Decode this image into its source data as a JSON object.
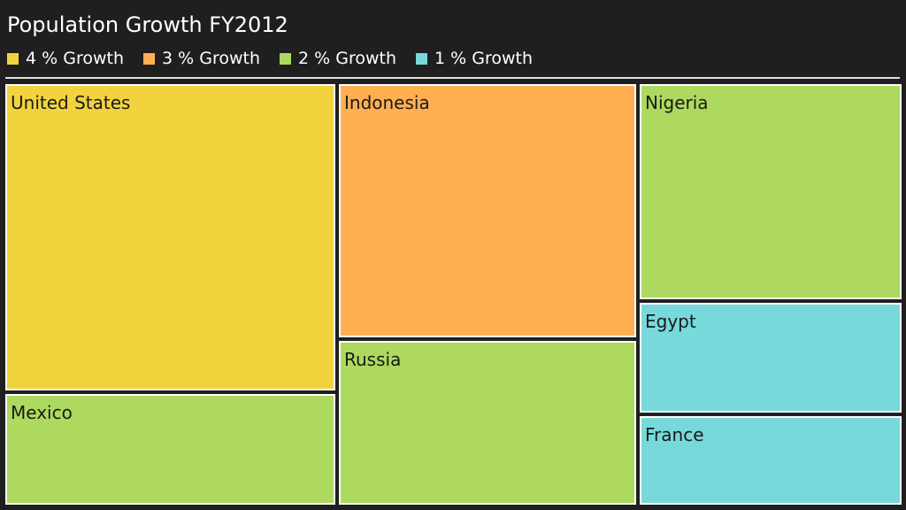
{
  "chart_data": {
    "type": "treemap",
    "title": "Population Growth FY2012",
    "legend": {
      "position": "top-left",
      "entries": [
        {
          "label": "4 % Growth",
          "growth": 4,
          "color": "#f2d33e"
        },
        {
          "label": "3 % Growth",
          "growth": 3,
          "color": "#ffaf52"
        },
        {
          "label": "2 % Growth",
          "growth": 2,
          "color": "#aed95f"
        },
        {
          "label": "1 % Growth",
          "growth": 1,
          "color": "#77d9d9"
        }
      ]
    },
    "columns": [
      {
        "items": [
          {
            "name": "United States",
            "growth": 4,
            "weight": 345
          },
          {
            "name": "Mexico",
            "growth": 2,
            "weight": 125
          }
        ]
      },
      {
        "items": [
          {
            "name": "Indonesia",
            "growth": 3,
            "weight": 285
          },
          {
            "name": "Russia",
            "growth": 2,
            "weight": 185
          }
        ]
      },
      {
        "items": [
          {
            "name": "Nigeria",
            "growth": 2,
            "weight": 245
          },
          {
            "name": "Egypt",
            "growth": 1,
            "weight": 125
          },
          {
            "name": "France",
            "growth": 1,
            "weight": 100
          }
        ]
      }
    ]
  }
}
